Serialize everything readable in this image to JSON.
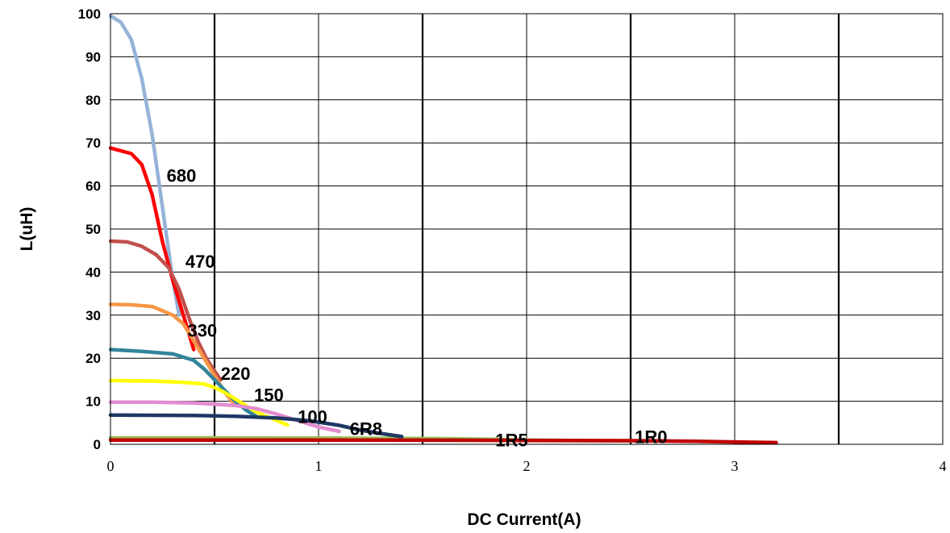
{
  "chart_data": {
    "type": "line",
    "title": "",
    "xlabel": "DC Current(A)",
    "ylabel": "L(uH)",
    "xlim": [
      0,
      4
    ],
    "ylim": [
      0,
      100
    ],
    "x_ticks": [
      "0",
      "1",
      "2",
      "3",
      "4"
    ],
    "y_ticks": [
      "0",
      "10",
      "20",
      "30",
      "40",
      "50",
      "60",
      "70",
      "80",
      "90",
      "100"
    ],
    "grid": "vertical major lines bold at 0.5, 1.5, 2.5, 3.5; thin lines at 1, 2, 3; horizontal lines every 10",
    "legend": "none; series labels placed next to curves",
    "series": [
      {
        "name": "680",
        "color": "#95b3d7",
        "label_x": 0.27,
        "label_y": 61,
        "x": [
          0,
          0.05,
          0.1,
          0.15,
          0.2,
          0.25,
          0.3,
          0.33
        ],
        "y": [
          99.5,
          98,
          94,
          85,
          72,
          55,
          38,
          30
        ]
      },
      {
        "name": "470",
        "color": "#ff0000",
        "label_x": 0.36,
        "label_y": 41,
        "x": [
          0,
          0.1,
          0.15,
          0.2,
          0.25,
          0.3,
          0.35,
          0.4
        ],
        "y": [
          68.8,
          67.5,
          65,
          58,
          47,
          38,
          30,
          22
        ]
      },
      {
        "name": "330",
        "color": "#c0504d",
        "label_x": 0.37,
        "label_y": 25,
        "x": [
          0,
          0.08,
          0.15,
          0.22,
          0.28,
          0.33,
          0.38,
          0.42,
          0.46,
          0.5,
          0.53
        ],
        "y": [
          47.2,
          47,
          46,
          44,
          41,
          36,
          29,
          24,
          20,
          17,
          15
        ]
      },
      {
        "name": "220",
        "color": "#f79646",
        "label_x": 0.53,
        "label_y": 15,
        "x": [
          0,
          0.1,
          0.2,
          0.3,
          0.35,
          0.4,
          0.45,
          0.5,
          0.55,
          0.6
        ],
        "y": [
          32.5,
          32.4,
          32,
          30,
          28,
          24,
          20,
          16,
          12,
          9
        ]
      },
      {
        "name": "150",
        "color": "#31849b",
        "label_x": 0.69,
        "label_y": 10,
        "x": [
          0,
          0.15,
          0.3,
          0.4,
          0.45,
          0.5,
          0.55,
          0.6,
          0.65,
          0.7
        ],
        "y": [
          22,
          21.6,
          21,
          19.5,
          17.5,
          15,
          12.5,
          10,
          8,
          6.5
        ]
      },
      {
        "name": "100",
        "color": "#ffff00",
        "label_x": 0.9,
        "label_y": 5,
        "x": [
          0,
          0.2,
          0.35,
          0.45,
          0.5,
          0.55,
          0.6,
          0.65,
          0.7,
          0.75,
          0.8,
          0.85
        ],
        "y": [
          14.8,
          14.7,
          14.4,
          14,
          13.2,
          12,
          10.5,
          9,
          7.5,
          6.5,
          5.5,
          4.5
        ]
      },
      {
        "name": "6R8",
        "color": "#e38ccf",
        "label_x": 1.15,
        "label_y": 2.2,
        "x": [
          0,
          0.2,
          0.4,
          0.6,
          0.7,
          0.8,
          0.9,
          1.0,
          1.1
        ],
        "y": [
          9.8,
          9.8,
          9.6,
          9.0,
          8.3,
          7.0,
          5.5,
          4.0,
          3.0
        ]
      },
      {
        "name": "1R5",
        "color": "#9bbb59",
        "label_x": 1.85,
        "label_y": -0.5,
        "x": [
          0,
          0.5,
          1.0,
          1.5,
          1.8,
          2.0,
          2.2,
          2.5
        ],
        "y": [
          1.5,
          1.5,
          1.45,
          1.35,
          1.2,
          1.0,
          0.9,
          0.8
        ]
      },
      {
        "name": "1R0",
        "color": "#c00000",
        "label_x": 2.52,
        "label_y": 0.3,
        "x": [
          0,
          0.5,
          1.0,
          1.5,
          2.0,
          2.5,
          2.8,
          3.0,
          3.2
        ],
        "y": [
          1.0,
          1.0,
          0.98,
          0.95,
          0.9,
          0.85,
          0.7,
          0.55,
          0.4
        ]
      },
      {
        "name": "",
        "color": "#1f3864",
        "x": [
          0,
          0.2,
          0.4,
          0.6,
          0.8,
          0.95,
          1.1,
          1.2,
          1.3,
          1.4
        ],
        "y": [
          6.8,
          6.75,
          6.7,
          6.5,
          6.1,
          5.5,
          4.4,
          3.3,
          2.5,
          1.8
        ]
      }
    ]
  }
}
